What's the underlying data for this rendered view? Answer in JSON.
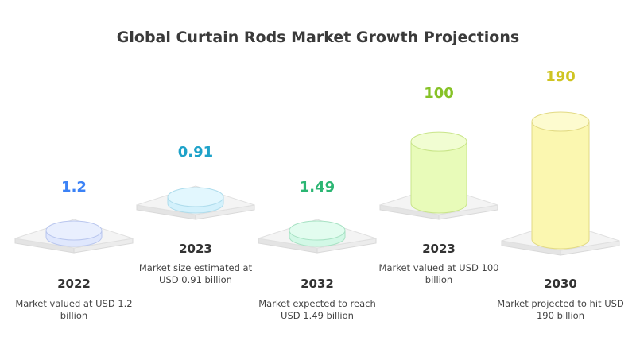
{
  "chart_data": {
    "type": "bar",
    "title": "Global Curtain Rods Market Growth Projections",
    "categories": [
      "2022",
      "2023",
      "2032",
      "2023",
      "2030"
    ],
    "values": [
      1.2,
      0.91,
      1.49,
      100,
      190
    ],
    "value_labels": [
      "1.2",
      "0.91",
      "1.49",
      "100",
      "190"
    ],
    "descriptions": [
      "Market valued at USD 1.2 billion",
      "Market size estimated at USD 0.91 billion",
      "Market expected to reach USD 1.49 billion",
      "Market valued at USD 100 billion",
      "Market projected to hit USD 190 billion"
    ],
    "colors": [
      {
        "fill": "#dfe7fd",
        "top": "#e9effe",
        "stroke": "#b9c6ee",
        "label": "#3b82f6"
      },
      {
        "fill": "#d3f1fc",
        "top": "#e2f7fe",
        "stroke": "#aedcec",
        "label": "#1ea2c9"
      },
      {
        "fill": "#d2f8e6",
        "top": "#e2fcef",
        "stroke": "#a8e2c4",
        "label": "#2bb673"
      },
      {
        "fill": "#e8fbb9",
        "top": "#f1fdd2",
        "stroke": "#c9e58a",
        "label": "#86c226"
      },
      {
        "fill": "#fbf7b0",
        "top": "#fdfbcf",
        "stroke": "#e2da84",
        "label": "#cfc422"
      }
    ],
    "grid": false,
    "legend": "none"
  }
}
